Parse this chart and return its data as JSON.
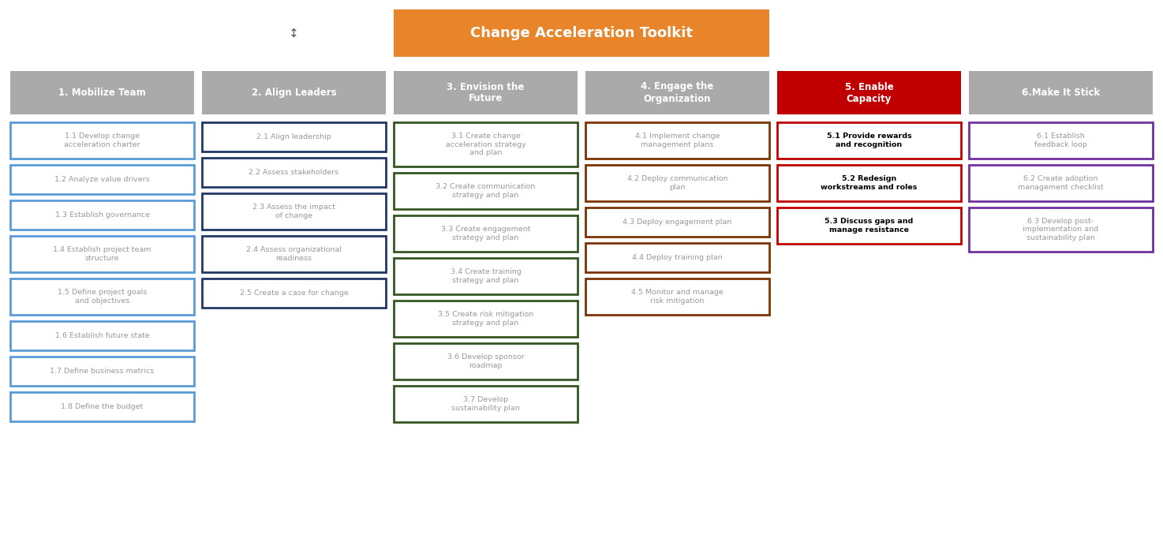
{
  "title": "Change Acceleration Toolkit",
  "title_bg": "#E8852A",
  "title_color": "#FFFFFF",
  "move_icon": "↕",
  "columns": [
    {
      "header": "1. Mobilize Team",
      "header_bg": "#AAAAAA",
      "header_color": "#FFFFFF",
      "box_border": "#5B9BD5",
      "box_bg": "#FFFFFF",
      "text_color": "#999999",
      "bold": false,
      "items": [
        "1.1 Develop change\nacceleration charter",
        "1.2 Analyze value drivers",
        "1.3 Establish governance",
        "1.4 Establish project team\nstructure",
        "1.5 Define project goals\nand objectives",
        "1.6 Establish future state",
        "1.7 Define business metrics",
        "1.8 Define the budget"
      ]
    },
    {
      "header": "2. Align Leaders",
      "header_bg": "#AAAAAA",
      "header_color": "#FFFFFF",
      "box_border": "#1F3864",
      "box_bg": "#FFFFFF",
      "text_color": "#999999",
      "bold": false,
      "items": [
        "2.1 Align leadership",
        "2.2 Assess stakeholders",
        "2.3 Assess the impact\nof change",
        "2.4 Assess organizational\nreadiness",
        "2.5 Create a case for change"
      ]
    },
    {
      "header": "3. Envision the\nFuture",
      "header_bg": "#AAAAAA",
      "header_color": "#FFFFFF",
      "box_border": "#375623",
      "box_bg": "#FFFFFF",
      "text_color": "#999999",
      "bold": false,
      "items": [
        "3.1 Create change\nacceleration strategy\nand plan",
        "3.2 Create communication\nstrategy and plan",
        "3.3 Create engagement\nstrategy and plan",
        "3.4 Create training\nstrategy and plan",
        "3.5 Create risk mitigation\nstrategy and plan",
        "3.6 Develop sponsor\nroadmap",
        "3.7 Develop\nsustainability plan"
      ]
    },
    {
      "header": "4. Engage the\nOrganization",
      "header_bg": "#AAAAAA",
      "header_color": "#FFFFFF",
      "box_border": "#7B3306",
      "box_bg": "#FFFFFF",
      "text_color": "#999999",
      "bold": false,
      "items": [
        "4.1 Implement change\nmanagement plans",
        "4.2 Deploy communication\nplan",
        "4.3 Deploy engagement plan",
        "4.4 Deploy training plan",
        "4.5 Monitor and manage\nrisk mitigation"
      ]
    },
    {
      "header": "5. Enable\nCapacity",
      "header_bg": "#C00000",
      "header_color": "#FFFFFF",
      "box_border": "#C00000",
      "box_bg": "#FFFFFF",
      "text_color": "#000000",
      "bold": true,
      "items": [
        "5.1 Provide rewards\nand recognition",
        "5.2 Redesign\nworkstreams and roles",
        "5.3 Discuss gaps and\nmanage resistance"
      ]
    },
    {
      "header": "6.Make It Stick",
      "header_bg": "#AAAAAA",
      "header_color": "#FFFFFF",
      "box_border": "#7030A0",
      "box_bg": "#FFFFFF",
      "text_color": "#999999",
      "bold": false,
      "items": [
        "6.1 Establish\nfeedback loop",
        "6.2 Create adoption\nmanagement checklist",
        "6.3 Develop post-\nimplementation and\nsustainability plan"
      ]
    }
  ],
  "fig_width": 14.74,
  "fig_height": 7.06,
  "bg_color": "#FFFFFF",
  "dpi": 100
}
